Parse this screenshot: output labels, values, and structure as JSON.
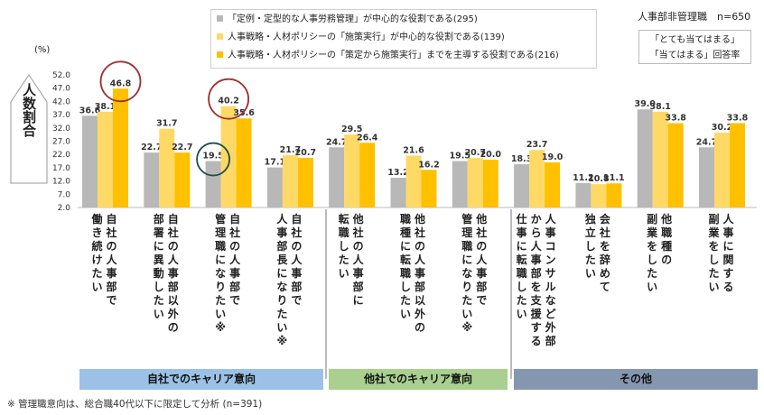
{
  "legend": [
    {
      "label": "「定例・定型的な人事労務管理」が中心的な役割である(295)",
      "color": "#b8b8b8"
    },
    {
      "label": "人事戦略・人材ポリシーの「施策実行」が中心的な役割である(139)",
      "color": "#ffd966"
    },
    {
      "label": "人事戦略・人材ポリシーの「策定から施策実行」までを主導する役割である(216)",
      "color": "#ffc000"
    }
  ],
  "respondents": "人事部非管理職　n=650",
  "note_lines": [
    "「とても当てはまる」",
    "「当てはまる」回答率"
  ],
  "y_unit": "(%)",
  "y_axis_title": "人数割合",
  "footnote": "※ 管理職意向は、総合職40代以下に限定して分析 (n=391)",
  "groups": [
    {
      "label": "自社でのキャリア意向",
      "color": "#9bc2e6"
    },
    {
      "label": "他社でのキャリア意向",
      "color": "#a9d08e"
    },
    {
      "label": "その他",
      "color": "#8496b0"
    }
  ],
  "chart_data": {
    "type": "bar",
    "ylim": [
      2.0,
      52.0
    ],
    "yticks": [
      "52.0",
      "47.0",
      "42.0",
      "37.0",
      "32.0",
      "27.0",
      "22.0",
      "17.0",
      "12.0",
      "7.0",
      "2.0"
    ],
    "categories": [
      [
        "自社の人事部で",
        "働き続けたい"
      ],
      [
        "自社の人事部以外の",
        "部署に異動したい"
      ],
      [
        "自社の人事部で",
        "管理職になりたい※"
      ],
      [
        "自社の人事部で",
        "人事部長になりたい※"
      ],
      [
        "他社の人事部に",
        "転職したい"
      ],
      [
        "他社の人事部以外の",
        "職種に転職したい"
      ],
      [
        "他社の人事部で",
        "管理職になりたい※"
      ],
      [
        "人事コンサルなど外部",
        "から人事部を支援する",
        "仕事に転職したい"
      ],
      [
        "会社を辞めて",
        "独立したい"
      ],
      [
        "他職種の",
        "副業をしたい"
      ],
      [
        "人事に関する",
        "副業をしたい"
      ]
    ],
    "series": [
      {
        "values": [
          36.6,
          22.7,
          19.5,
          17.1,
          24.7,
          13.2,
          19.5,
          18.3,
          11.2,
          39.0,
          24.7
        ],
        "color": "#b8b8b8"
      },
      {
        "values": [
          38.1,
          31.7,
          40.2,
          21.7,
          29.5,
          21.6,
          20.7,
          23.7,
          10.8,
          38.1,
          30.2
        ],
        "color": "#ffd966"
      },
      {
        "values": [
          46.8,
          22.7,
          35.6,
          20.7,
          26.4,
          16.2,
          20.0,
          19.0,
          11.1,
          33.8,
          33.8
        ],
        "color": "#ffc000"
      }
    ],
    "highlights": [
      {
        "category": 0,
        "series": 2,
        "color": "#a03030"
      },
      {
        "category": 2,
        "series": 1,
        "color": "#a03030"
      },
      {
        "category": 2,
        "series": 0,
        "color": "#1f4e4e"
      }
    ]
  }
}
